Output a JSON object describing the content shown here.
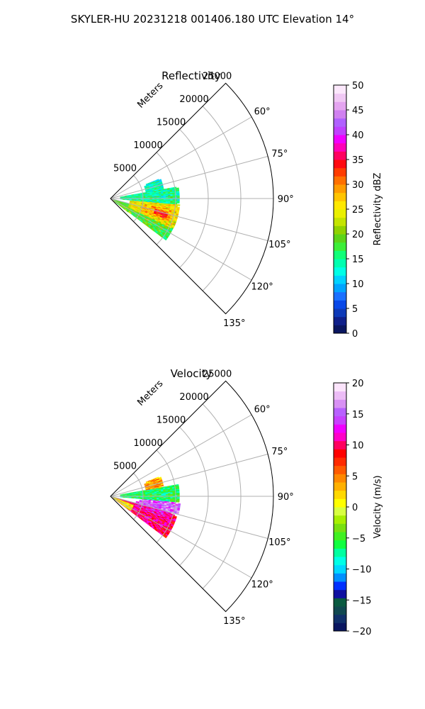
{
  "figure": {
    "suptitle": "SKYLER-HU  20231218  001406.180 UTC Elevation 14°"
  },
  "chart_data": [
    {
      "type": "heatmap",
      "subtype": "polar-sector",
      "title": "Reflectivity",
      "radial_axis_label": "Meters",
      "radial_ticks": [
        5000,
        10000,
        15000,
        20000,
        25000
      ],
      "radial_lim": [
        0,
        25000
      ],
      "theta_ticks_deg": [
        60,
        75,
        90,
        105,
        120,
        135
      ],
      "theta_tick_labels": [
        "60°",
        "75°",
        "90°",
        "105°",
        "120°",
        "135°"
      ],
      "theta_lim_deg": [
        45,
        135
      ],
      "grid": true,
      "colorbar": {
        "label": "Reflectivity dBZ",
        "range": [
          0,
          50
        ],
        "ticks": [
          0,
          5,
          10,
          15,
          20,
          25,
          30,
          35,
          40,
          45,
          50
        ],
        "tick_labels": [
          "0",
          "5",
          "10",
          "15",
          "20",
          "25",
          "30",
          "35",
          "40",
          "45",
          "50"
        ],
        "palette": [
          "#0a1660",
          "#10208a",
          "#0e3ab8",
          "#0848e8",
          "#1a70ff",
          "#00a4ff",
          "#00d2ff",
          "#00ffe6",
          "#00ffb0",
          "#10ff78",
          "#3cee38",
          "#5cd418",
          "#90d200",
          "#c4e400",
          "#eaf000",
          "#ffe800",
          "#ffc400",
          "#ff9c00",
          "#ff7000",
          "#ff3c00",
          "#ff0a10",
          "#ff0060",
          "#ff00b8",
          "#f000ff",
          "#c040ff",
          "#b060ff",
          "#d080f0",
          "#e4a4f0",
          "#f0c8f4",
          "#fce8fc"
        ]
      },
      "echo_regions": [
        {
          "theta_deg": [
            106,
            127
          ],
          "range_m": [
            500,
            10500
          ],
          "value": 18
        },
        {
          "theta_deg": [
            95,
            116
          ],
          "range_m": [
            3000,
            10500
          ],
          "value": 25
        },
        {
          "theta_deg": [
            100,
            112
          ],
          "range_m": [
            5000,
            9500
          ],
          "value": 28
        },
        {
          "theta_deg": [
            103,
            110
          ],
          "range_m": [
            7000,
            9000
          ],
          "value": 33
        },
        {
          "theta_deg": [
            80,
            95
          ],
          "range_m": [
            1500,
            10500
          ],
          "value": 15
        },
        {
          "theta_deg": [
            68,
            80
          ],
          "range_m": [
            5500,
            8000
          ],
          "value": 14
        },
        {
          "theta_deg": [
            118,
            128
          ],
          "range_m": [
            300,
            3500
          ],
          "value": 20
        }
      ]
    },
    {
      "type": "heatmap",
      "subtype": "polar-sector",
      "title": "Velocity",
      "radial_axis_label": "Meters",
      "radial_ticks": [
        5000,
        10000,
        15000,
        20000,
        25000
      ],
      "radial_lim": [
        0,
        25000
      ],
      "theta_ticks_deg": [
        60,
        75,
        90,
        105,
        120,
        135
      ],
      "theta_tick_labels": [
        "60°",
        "75°",
        "90°",
        "105°",
        "120°",
        "135°"
      ],
      "theta_lim_deg": [
        45,
        135
      ],
      "grid": true,
      "colorbar": {
        "label": "Velocity (m/s)",
        "range": [
          -20,
          20
        ],
        "ticks": [
          -20,
          -15,
          -10,
          -5,
          0,
          5,
          10,
          15,
          20
        ],
        "tick_labels": [
          "−20",
          "−15",
          "−10",
          "−5",
          "0",
          "5",
          "10",
          "15",
          "20"
        ],
        "palette": [
          "#0a1660",
          "#10306a",
          "#104850",
          "#0a5a40",
          "#1010a0",
          "#0030ff",
          "#0090ff",
          "#00d8ff",
          "#00ffe6",
          "#00ffa0",
          "#10ff40",
          "#40f020",
          "#78e010",
          "#a8f000",
          "#d8ff40",
          "#ffff00",
          "#ffd800",
          "#ffb000",
          "#ff8800",
          "#ff5a00",
          "#ff2a00",
          "#ff0000",
          "#ff0060",
          "#ff00c8",
          "#f000ff",
          "#c840ff",
          "#b860ff",
          "#d890f4",
          "#ecbcf6",
          "#fce4fc"
        ]
      },
      "echo_regions": [
        {
          "theta_deg": [
            106,
            127
          ],
          "range_m": [
            500,
            10500
          ],
          "value": 10
        },
        {
          "theta_deg": [
            100,
            112
          ],
          "range_m": [
            4000,
            9500
          ],
          "value": 12
        },
        {
          "theta_deg": [
            95,
            105
          ],
          "range_m": [
            4500,
            10500
          ],
          "value": 15
        },
        {
          "theta_deg": [
            110,
            126
          ],
          "range_m": [
            300,
            3500
          ],
          "value": 1
        },
        {
          "theta_deg": [
            80,
            95
          ],
          "range_m": [
            1500,
            10500
          ],
          "value": -6
        },
        {
          "theta_deg": [
            68,
            80
          ],
          "range_m": [
            5500,
            8000
          ],
          "value": 4
        }
      ]
    }
  ]
}
